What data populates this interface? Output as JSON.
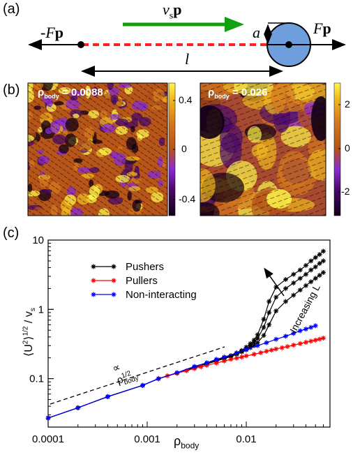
{
  "panel_a": {
    "label": "(a)",
    "neg_force_prefix": "-",
    "force_symbol": "F",
    "vec_p": "p",
    "speed_symbol": "v",
    "speed_subscript": "s",
    "radius_symbol": "a",
    "length_symbol": "l"
  },
  "panel_b": {
    "label": "(b)",
    "left": {
      "rho_prefix": "ρ",
      "rho_sub": "body",
      "rho_value": " = 0.0088",
      "colorbar_ticks": [
        "0.4",
        "0",
        "-0.4"
      ]
    },
    "right": {
      "rho_prefix": "ρ",
      "rho_sub": "body",
      "rho_value": " = 0.026",
      "colorbar_ticks": [
        "2",
        "0",
        "-2"
      ]
    },
    "colormap": [
      "#120015",
      "#4a0a6a",
      "#8a2bd0",
      "#b3521a",
      "#d4781c",
      "#f0b820",
      "#fff64a"
    ]
  },
  "panel_c": {
    "label": "(c)",
    "annotation_increasing": "Increasing L",
    "annotation_scaling_prefix": "∝ ρ",
    "annotation_scaling_sub": "body",
    "annotation_scaling_sup": "1/2"
  },
  "chart_data": {
    "type": "line",
    "xscale": "log",
    "yscale": "log",
    "xlim": [
      0.0001,
      0.07
    ],
    "ylim": [
      0.02,
      10
    ],
    "xticks": [
      "0.0001",
      "0.001",
      "0.01"
    ],
    "yticks": [
      "0.1",
      "1",
      "10"
    ],
    "xlabel": "ρbody",
    "ylabel": "⟨U²⟩^1/2 / vs",
    "legend_position": "top-left",
    "series": [
      {
        "name": "Pushers",
        "color": "#000000",
        "marker": "star",
        "x": [
          0.0001,
          0.0002,
          0.0004,
          0.0009,
          0.0013,
          0.002,
          0.003,
          0.004,
          0.005,
          0.006,
          0.007,
          0.008,
          0.009,
          0.01,
          0.011,
          0.012,
          0.013,
          0.015,
          0.017,
          0.02,
          0.025,
          0.03,
          0.035,
          0.04,
          0.045,
          0.05,
          0.055,
          0.06
        ],
        "y": [
          0.027,
          0.038,
          0.055,
          0.08,
          0.1,
          0.12,
          0.145,
          0.165,
          0.185,
          0.2,
          0.215,
          0.235,
          0.255,
          0.285,
          0.32,
          0.36,
          0.43,
          0.72,
          1.3,
          2.1,
          2.7,
          3.2,
          3.7,
          4.3,
          5.0,
          5.6,
          6.2,
          6.9
        ]
      },
      {
        "name": "",
        "color": "#000000",
        "marker": "star",
        "x": [
          0.0001,
          0.0002,
          0.0004,
          0.0009,
          0.0013,
          0.002,
          0.003,
          0.004,
          0.005,
          0.006,
          0.007,
          0.008,
          0.009,
          0.01,
          0.011,
          0.012,
          0.013,
          0.015,
          0.017,
          0.02,
          0.025,
          0.03,
          0.035,
          0.04,
          0.045,
          0.05,
          0.055,
          0.06
        ],
        "y": [
          0.027,
          0.038,
          0.055,
          0.08,
          0.1,
          0.12,
          0.145,
          0.165,
          0.183,
          0.198,
          0.212,
          0.23,
          0.25,
          0.27,
          0.3,
          0.33,
          0.38,
          0.55,
          0.9,
          1.5,
          2.0,
          2.4,
          2.8,
          3.2,
          3.7,
          4.1,
          4.6,
          5.0
        ]
      },
      {
        "name": "",
        "color": "#000000",
        "marker": "star",
        "x": [
          0.0001,
          0.0002,
          0.0004,
          0.0009,
          0.0013,
          0.002,
          0.003,
          0.004,
          0.005,
          0.006,
          0.007,
          0.008,
          0.009,
          0.01,
          0.011,
          0.012,
          0.013,
          0.015,
          0.017,
          0.02,
          0.025,
          0.03,
          0.035,
          0.04,
          0.045,
          0.05,
          0.055,
          0.06
        ],
        "y": [
          0.027,
          0.038,
          0.055,
          0.08,
          0.1,
          0.12,
          0.145,
          0.163,
          0.18,
          0.195,
          0.208,
          0.225,
          0.243,
          0.26,
          0.28,
          0.3,
          0.33,
          0.42,
          0.6,
          0.95,
          1.3,
          1.6,
          1.9,
          2.2,
          2.5,
          2.8,
          3.1,
          3.4
        ]
      },
      {
        "name": "Pullers",
        "color": "#ff0000",
        "marker": "star",
        "x": [
          0.0013,
          0.0016,
          0.002,
          0.0025,
          0.003,
          0.0035,
          0.004,
          0.005,
          0.006,
          0.007,
          0.008,
          0.009,
          0.01,
          0.012,
          0.014,
          0.016,
          0.018,
          0.02,
          0.023,
          0.026,
          0.03,
          0.035,
          0.04,
          0.045,
          0.05,
          0.055,
          0.06
        ],
        "y": [
          0.1,
          0.11,
          0.12,
          0.13,
          0.14,
          0.148,
          0.156,
          0.168,
          0.18,
          0.19,
          0.198,
          0.205,
          0.213,
          0.225,
          0.237,
          0.248,
          0.258,
          0.268,
          0.28,
          0.29,
          0.305,
          0.32,
          0.335,
          0.348,
          0.36,
          0.372,
          0.385
        ]
      },
      {
        "name": "Non-interacting",
        "color": "#0000ff",
        "marker": "star",
        "x": [
          0.0001,
          0.0002,
          0.0004,
          0.0009,
          0.0013,
          0.002,
          0.003,
          0.004,
          0.005,
          0.006,
          0.008,
          0.01,
          0.013,
          0.016,
          0.02,
          0.025,
          0.03,
          0.035,
          0.04,
          0.045,
          0.05
        ],
        "y": [
          0.027,
          0.038,
          0.055,
          0.08,
          0.1,
          0.122,
          0.15,
          0.17,
          0.19,
          0.205,
          0.235,
          0.265,
          0.3,
          0.33,
          0.37,
          0.41,
          0.45,
          0.49,
          0.52,
          0.55,
          0.58
        ]
      }
    ]
  }
}
